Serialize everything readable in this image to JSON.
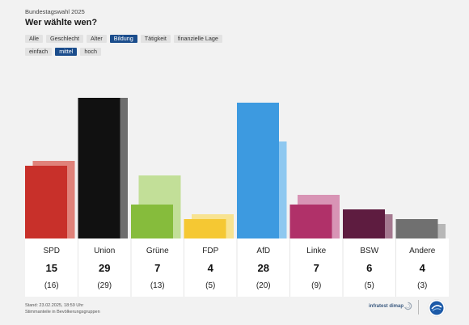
{
  "header": {
    "eyebrow": "Bundestagswahl 2025",
    "title": "Wer wählte wen?"
  },
  "filters": {
    "categories": [
      {
        "label": "Alle",
        "active": false
      },
      {
        "label": "Geschlecht",
        "active": false
      },
      {
        "label": "Alter",
        "active": false
      },
      {
        "label": "Bildung",
        "active": true
      },
      {
        "label": "Tätigkeit",
        "active": false
      },
      {
        "label": "finanzielle Lage",
        "active": false
      }
    ],
    "levels": [
      {
        "label": "einfach",
        "active": false
      },
      {
        "label": "mittel",
        "active": true
      },
      {
        "label": "hoch",
        "active": false
      }
    ]
  },
  "chart_data": {
    "type": "bar",
    "categories": [
      "SPD",
      "Union",
      "Grüne",
      "FDP",
      "AfD",
      "Linke",
      "BSW",
      "Andere"
    ],
    "series": [
      {
        "values": [
          15,
          29,
          7,
          4,
          28,
          7,
          6,
          4
        ]
      },
      {
        "values": [
          16,
          29,
          13,
          5,
          20,
          9,
          5,
          3
        ]
      }
    ],
    "value_labels": [
      "15",
      "29",
      "7",
      "4",
      "28",
      "7",
      "6",
      "4"
    ],
    "previous_labels": [
      "(16)",
      "(29)",
      "(13)",
      "(5)",
      "(20)",
      "(9)",
      "(5)",
      "(3)"
    ],
    "colors": {
      "current": [
        "#c8302a",
        "#111111",
        "#86bc3c",
        "#f5c833",
        "#3d9ae0",
        "#b03169",
        "#5e1c40",
        "#707070"
      ],
      "previous": [
        "#e0827a",
        "#6e6e6e",
        "#c2df98",
        "#f8e391",
        "#8ec8f0",
        "#d894b5",
        "#a57990",
        "#b7b7b7"
      ]
    },
    "grid": false
  },
  "footer": {
    "stand": "Stand: 23.02.2025, 18:59 Uhr",
    "note": "Stimmanteile in Bevölkerungsgruppen",
    "brand": "infratest dimap"
  }
}
